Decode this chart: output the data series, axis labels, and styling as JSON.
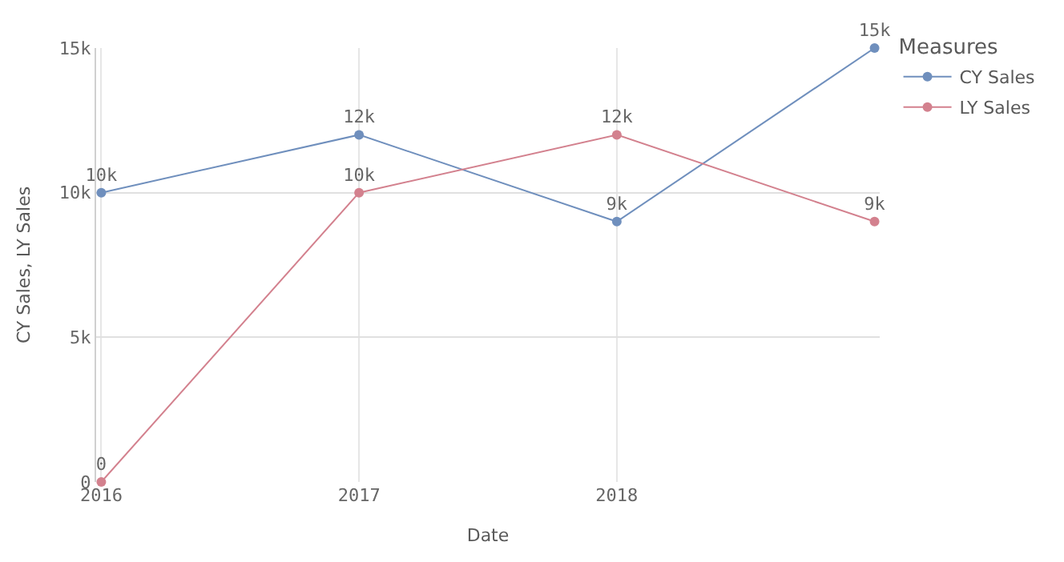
{
  "chart_data": {
    "type": "line",
    "xlabel": "Date",
    "ylabel": "CY Sales, LY Sales",
    "legend_title": "Measures",
    "categories": [
      "2016",
      "2017",
      "2018",
      null
    ],
    "series": [
      {
        "name": "CY Sales",
        "color": "#6f8fbd",
        "values": [
          10000,
          12000,
          9000,
          15000
        ],
        "value_labels": [
          "10k",
          "12k",
          "9k",
          "15k"
        ]
      },
      {
        "name": "LY Sales",
        "color": "#d3818e",
        "values": [
          0,
          10000,
          12000,
          9000
        ],
        "value_labels": [
          "0",
          "10k",
          "12k",
          "9k"
        ]
      }
    ],
    "ylim": [
      0,
      15000
    ],
    "yticks": [
      {
        "value": 0,
        "label": "0"
      },
      {
        "value": 5000,
        "label": "5k"
      },
      {
        "value": 10000,
        "label": "10k"
      },
      {
        "value": 15000,
        "label": "15k"
      }
    ],
    "grid": true,
    "legend": "top right",
    "marker": "circle",
    "line_style": "solid"
  }
}
